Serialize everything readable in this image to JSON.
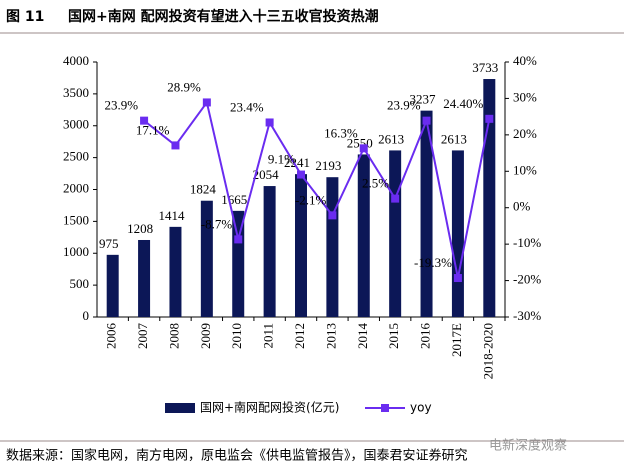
{
  "chart_data": {
    "type": "bar_line",
    "figure_label": "图 11",
    "title": "国网+南网 配网投资有望进入十三五收官投资热潮",
    "categories": [
      "2006",
      "2007",
      "2008",
      "2009",
      "2010",
      "2011",
      "2012",
      "2013",
      "2014",
      "2015",
      "2016",
      "2017E",
      "2018-2020"
    ],
    "series": [
      {
        "name": "国网+南网配网投资(亿元)",
        "type": "bar",
        "color": "#0c1757",
        "axis": "y",
        "values": [
          975,
          1208,
          1414,
          1824,
          1665,
          2054,
          2241,
          2193,
          2550,
          2613,
          3237,
          2613,
          3733
        ]
      },
      {
        "name": "yoy",
        "type": "line",
        "color": "#6a2cf0",
        "axis": "y2",
        "values": [
          null,
          23.9,
          17.1,
          28.9,
          -8.7,
          23.4,
          9.1,
          -2.1,
          16.3,
          2.5,
          23.9,
          -19.3,
          24.4
        ],
        "value_labels": [
          null,
          "23.9%",
          "17.1%",
          "28.9%",
          "-8.7%",
          "23.4%",
          "9.1%",
          "-2.1%",
          "16.3%",
          "2.5%",
          "23.9%",
          "-19.3%",
          "24.40%"
        ]
      }
    ],
    "ylim": [
      0,
      4000
    ],
    "yticks": [
      0,
      500,
      1000,
      1500,
      2000,
      2500,
      3000,
      3500,
      4000
    ],
    "y2lim": [
      -30,
      40
    ],
    "y2ticks": [
      {
        "value": -30,
        "label": "-30%"
      },
      {
        "value": -20,
        "label": "-20%"
      },
      {
        "value": -10,
        "label": "-10%"
      },
      {
        "value": 0,
        "label": "0%"
      },
      {
        "value": 10,
        "label": "10%"
      },
      {
        "value": 20,
        "label": "20%"
      },
      {
        "value": 30,
        "label": "30%"
      },
      {
        "value": 40,
        "label": "40%"
      }
    ],
    "legend": "bottom",
    "source": "数据来源：国家电网，南方电网，原电监会《供电监管报告》，国泰君安证券研究",
    "watermark": "电新深度观察"
  }
}
